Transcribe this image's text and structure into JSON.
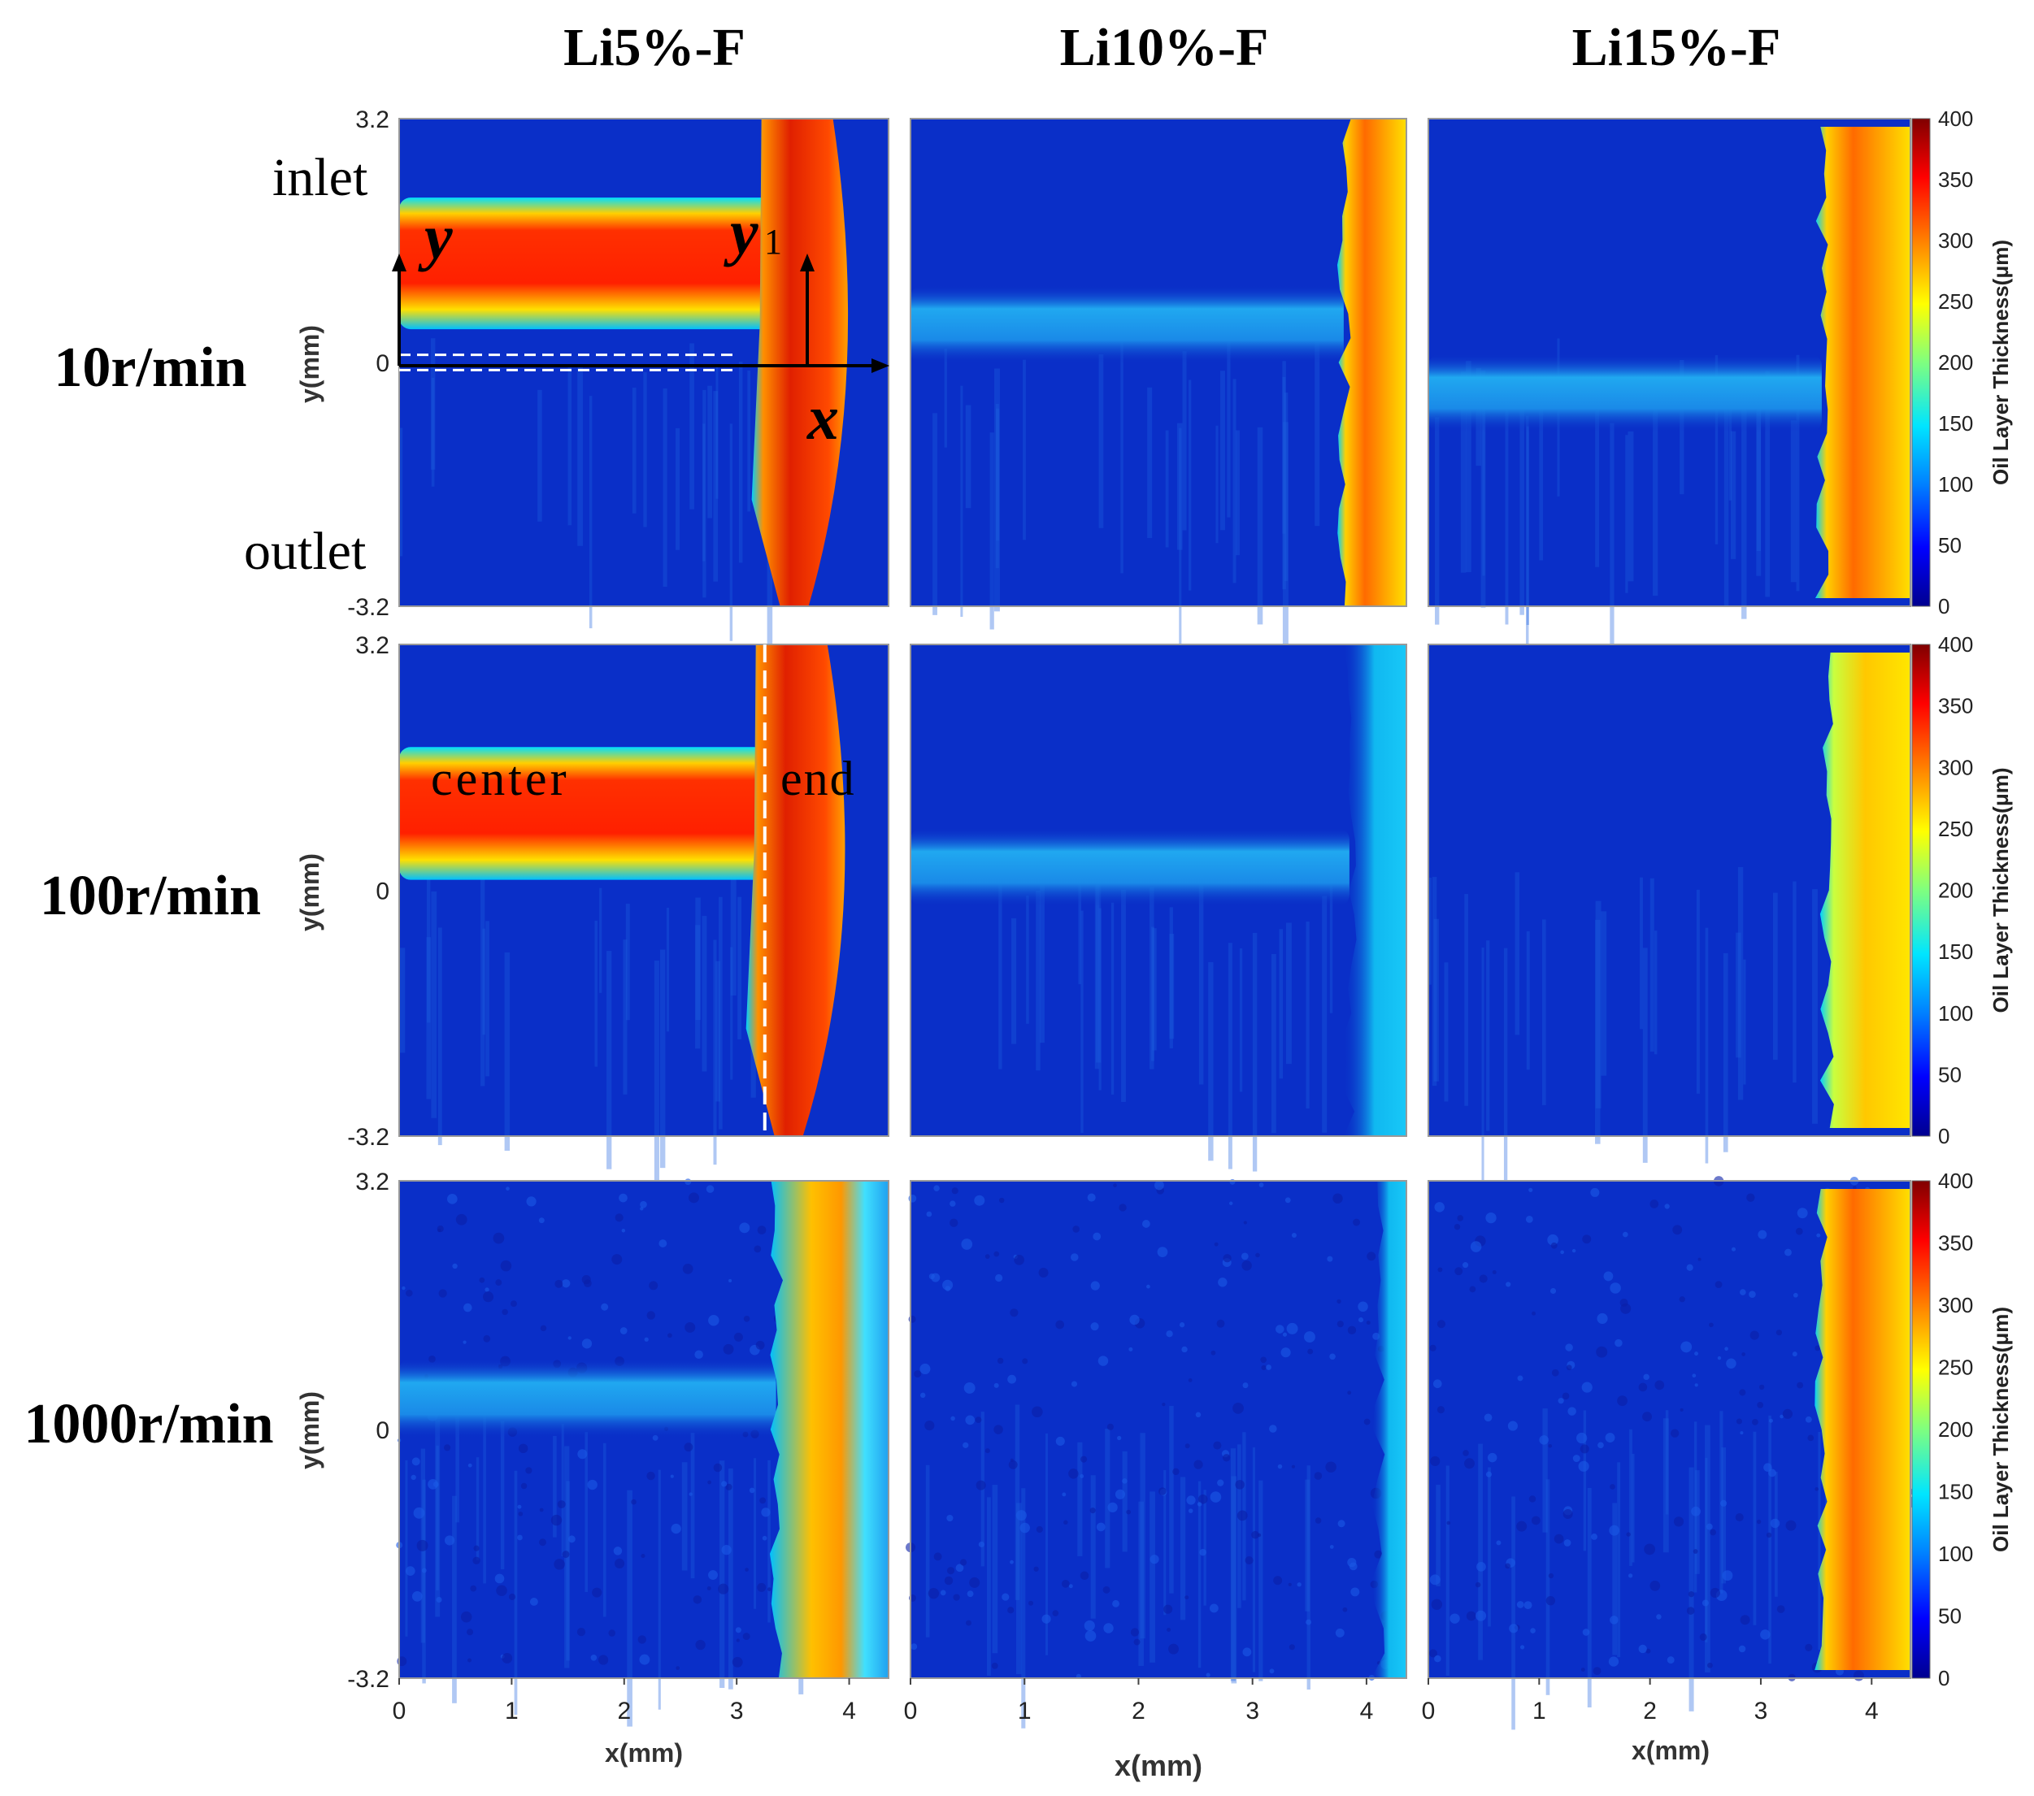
{
  "chart_data": {
    "type": "heatmap",
    "columns": [
      "Li5%-F",
      "Li10%-F",
      "Li15%-F"
    ],
    "rows": [
      "10r/min",
      "100r/min",
      "1000r/min"
    ],
    "xlabel": "x(mm)",
    "ylabel": "y(mm)",
    "xlim": [
      0,
      4.35
    ],
    "ylim": [
      -3.2,
      3.2
    ],
    "xticks": [
      "0",
      "1",
      "2",
      "3",
      "4"
    ],
    "yticks": [
      "3.2",
      "0",
      "-3.2"
    ],
    "colorbar": {
      "label": "Oil Layer Thickness(μm)",
      "range": [
        0,
        400
      ],
      "ticks": [
        "0",
        "50",
        "100",
        "150",
        "200",
        "250",
        "300",
        "350",
        "400"
      ]
    },
    "annotations": {
      "inlet": "inlet",
      "outlet": "outlet",
      "axis_y": "y",
      "axis_y1": "y",
      "axis_y1_sub": "1",
      "axis_x": "x",
      "center": "center",
      "end": "end"
    },
    "panels": [
      {
        "row": "10r/min",
        "col": "Li5%-F",
        "channel_y": 1.3,
        "channel_thickness": 290,
        "edge_x": 3.35,
        "edge_thickness": 350,
        "edge_shape": "arrow"
      },
      {
        "row": "10r/min",
        "col": "Li10%-F",
        "channel_y": 0.5,
        "channel_thickness": 70,
        "edge_x": 3.8,
        "edge_thickness": 240,
        "edge_shape": "band"
      },
      {
        "row": "10r/min",
        "col": "Li15%-F",
        "channel_y": -0.4,
        "channel_thickness": 30,
        "edge_x": 3.55,
        "edge_thickness": 260,
        "edge_shape": "band"
      },
      {
        "row": "100r/min",
        "col": "Li5%-F",
        "channel_y": 1.0,
        "channel_thickness": 320,
        "edge_x": 3.3,
        "edge_thickness": 330,
        "edge_shape": "arrow"
      },
      {
        "row": "100r/min",
        "col": "Li10%-F",
        "channel_y": 0.3,
        "channel_thickness": 40,
        "edge_x": 3.85,
        "edge_thickness": 70,
        "edge_shape": "band"
      },
      {
        "row": "100r/min",
        "col": "Li15%-F",
        "channel_y": 0,
        "channel_thickness": 0,
        "edge_x": 3.6,
        "edge_thickness": 205,
        "edge_shape": "band"
      },
      {
        "row": "1000r/min",
        "col": "Li5%-F",
        "channel_y": 0.4,
        "channel_thickness": 60,
        "edge_x": 3.35,
        "edge_thickness": 200,
        "edge_shape": "band"
      },
      {
        "row": "1000r/min",
        "col": "Li10%-F",
        "channel_y": 0,
        "channel_thickness": 0,
        "edge_x": 4.1,
        "edge_thickness": 60,
        "edge_shape": "band"
      },
      {
        "row": "1000r/min",
        "col": "Li15%-F",
        "channel_y": 0,
        "channel_thickness": 0,
        "edge_x": 3.55,
        "edge_thickness": 300,
        "edge_shape": "band"
      }
    ]
  },
  "colors": {
    "low": "#00008f",
    "base": "#0a2fc8",
    "mid": "#00c8ff",
    "green": "#50ff9a",
    "yellow": "#ffe600",
    "orange": "#ff9a00",
    "red": "#ee1a00",
    "high": "#8b0000"
  }
}
